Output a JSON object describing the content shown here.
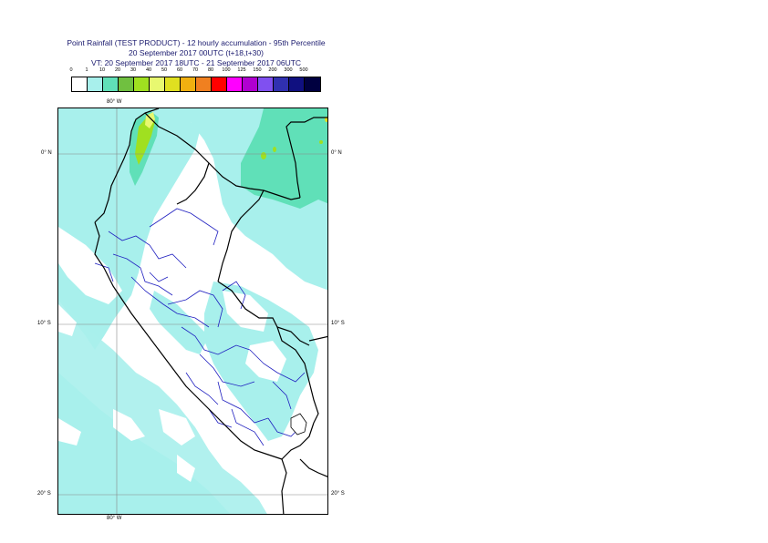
{
  "title": {
    "line1": "Point Rainfall (TEST PRODUCT) - 12 hourly accumulation - 95th Percentile",
    "line2": "20 September 2017 00UTC (t+18,t+30)",
    "line3": "VT: 20 September 2017 18UTC - 21 September 2017 06UTC"
  },
  "legend": {
    "labels": [
      "0",
      "1",
      "10",
      "20",
      "30",
      "40",
      "50",
      "60",
      "70",
      "80",
      "100",
      "125",
      "150",
      "200",
      "300",
      "500"
    ],
    "colors": [
      "#ffffff",
      "#a8f0ec",
      "#60e0b8",
      "#70c040",
      "#a0e020",
      "#e8f870",
      "#e0e020",
      "#f0b010",
      "#f08020",
      "#ff0000",
      "#ff00ff",
      "#b000d0",
      "#8050f0",
      "#3030b0",
      "#101080",
      "#000040"
    ]
  },
  "map": {
    "lat_labels_left": [
      "0° N",
      "10° S",
      "20° S"
    ],
    "lat_labels_right": [
      "0° N",
      "10° S",
      "20° S"
    ],
    "lon_label_top": "80° W",
    "lon_label_bottom": "80° W"
  }
}
